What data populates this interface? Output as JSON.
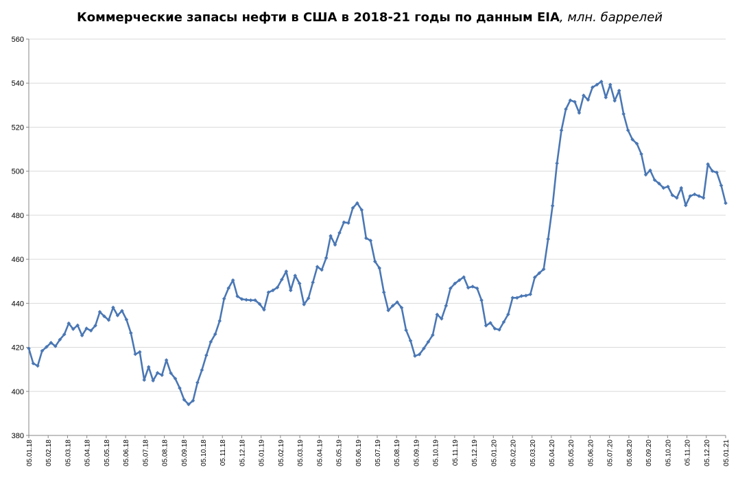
{
  "chart_data": {
    "type": "line",
    "title": "Коммерческие запасы нефти в США в 2018-21 годы по данным EIA",
    "title_unit": ", млн. баррелей",
    "xlabel": "",
    "ylabel": "",
    "ylim": [
      380,
      560
    ],
    "y_ticks": [
      380,
      400,
      420,
      440,
      460,
      480,
      500,
      520,
      540,
      560
    ],
    "x_tick_labels": [
      "05.01.18",
      "05.02.18",
      "05.03.18",
      "05.04.18",
      "05.05.18",
      "05.06.18",
      "05.07.18",
      "05.08.18",
      "05.09.18",
      "05.10.18",
      "05.11.18",
      "05.12.18",
      "05.01.19",
      "05.02.19",
      "05.03.19",
      "05.04.19",
      "05.05.19",
      "05.06.19",
      "05.07.19",
      "05.08.19",
      "05.09.19",
      "05.10.19",
      "05.11.19",
      "05.12.19",
      "05.01.20",
      "05.02.20",
      "05.03.20",
      "05.04.20",
      "05.05.20",
      "05.06.20",
      "05.07.20",
      "05.08.20",
      "05.09.20",
      "05.10.20",
      "05.11.20",
      "05.12.20",
      "05.01.21"
    ],
    "grid": true,
    "legend": "none",
    "color": "#4a77b4",
    "series": [
      {
        "name": "Коммерческие запасы нефти",
        "values": [
          419.5,
          412.7,
          411.6,
          418.4,
          420.2,
          422.1,
          420.5,
          423.5,
          425.9,
          430.9,
          428.3,
          430.0,
          425.4,
          428.6,
          427.6,
          429.9,
          436.1,
          434.1,
          432.4,
          438.1,
          434.5,
          436.6,
          432.6,
          426.5,
          416.9,
          417.9,
          405.2,
          411.1,
          404.9,
          408.4,
          407.4,
          414.2,
          408.3,
          405.8,
          401.5,
          396.2,
          394.1,
          395.8,
          404.0,
          409.7,
          416.4,
          422.5,
          426.0,
          432.0,
          442.1,
          446.9,
          450.5,
          443.2,
          441.9,
          441.6,
          441.4,
          441.4,
          439.7,
          437.1,
          445.0,
          445.9,
          447.2,
          450.8,
          454.5,
          445.9,
          452.6,
          449.0,
          439.5,
          442.3,
          449.5,
          456.6,
          455.2,
          460.6,
          470.6,
          466.6,
          472.0,
          476.8,
          476.5,
          483.3,
          485.5,
          482.4,
          469.6,
          468.5,
          459.0,
          456.0,
          445.0,
          436.8,
          438.9,
          440.5,
          438.0,
          427.8,
          423.0,
          416.1,
          416.8,
          419.5,
          422.5,
          425.6,
          434.9,
          433.0,
          438.9,
          446.8,
          449.0,
          450.5,
          451.9,
          447.1,
          447.6,
          446.8,
          441.4,
          429.9,
          431.1,
          428.5,
          428.0,
          431.5,
          435.0,
          442.5,
          442.5,
          443.3,
          443.5,
          444.1,
          451.8,
          453.7,
          455.5,
          469.2,
          484.3,
          503.6,
          518.6,
          528.2,
          532.2,
          531.5,
          526.5,
          534.4,
          532.4,
          538.1,
          539.3,
          540.7,
          533.5,
          539.3,
          532.0,
          536.6,
          526.0,
          518.6,
          514.4,
          512.5,
          507.8,
          498.4,
          500.4,
          496.0,
          494.4,
          492.4,
          493.0,
          489.1,
          487.9,
          492.4,
          484.5,
          488.7,
          489.5,
          488.7,
          487.9,
          503.2,
          500.1,
          499.4,
          493.5,
          485.5
        ]
      }
    ]
  }
}
